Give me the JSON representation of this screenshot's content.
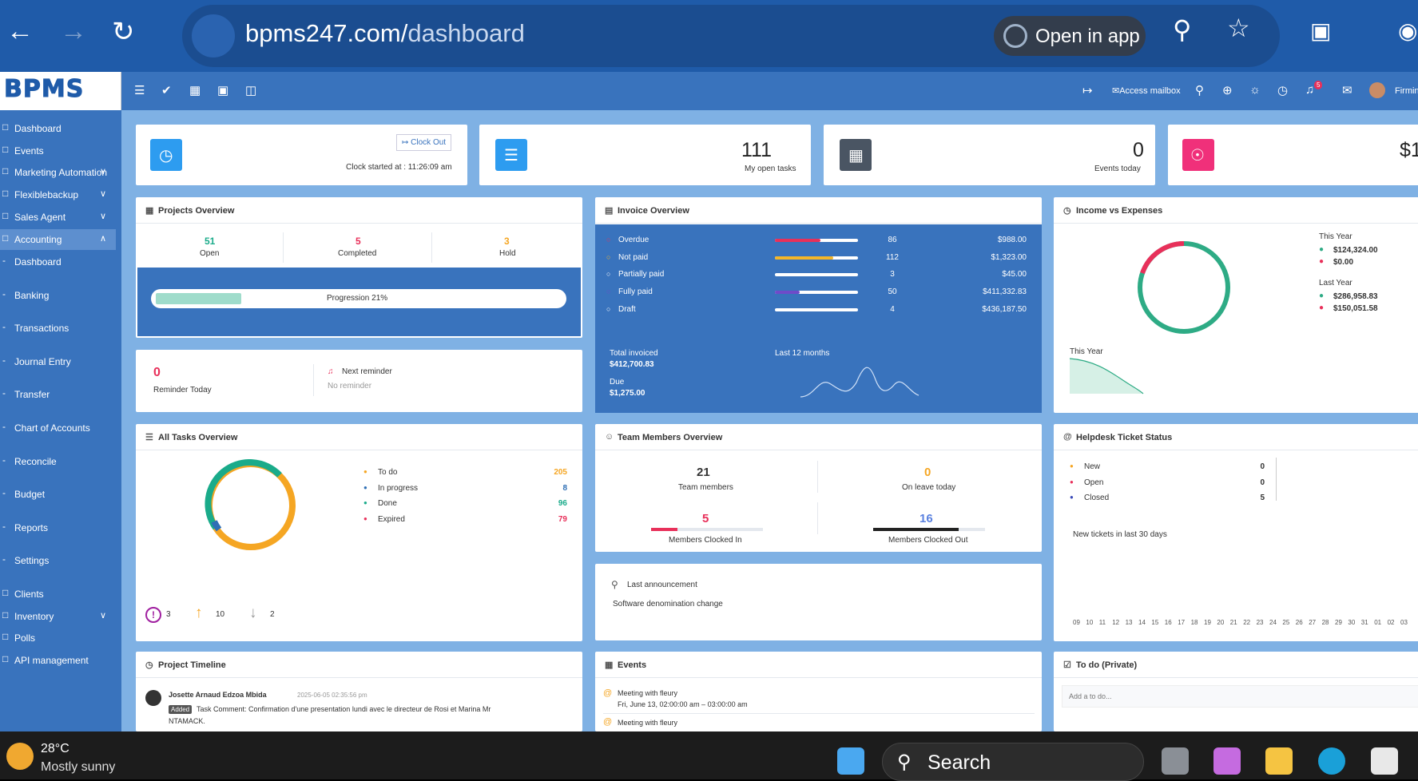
{
  "browser": {
    "url_host": "bpms247.com/",
    "url_path": "dashboard",
    "open_in_app": "Open in app"
  },
  "topbar": {
    "access_mailbox": "Access mailbox",
    "notif_count": "5",
    "user": "Firmin"
  },
  "logo": "BPMS",
  "sidebar": [
    {
      "label": "Dashboard"
    },
    {
      "label": "Events"
    },
    {
      "label": "Marketing Automation"
    },
    {
      "label": "Flexiblebackup"
    },
    {
      "label": "Sales Agent"
    },
    {
      "label": "Accounting"
    },
    {
      "label": "Dashboard"
    },
    {
      "label": "Banking"
    },
    {
      "label": "Transactions"
    },
    {
      "label": "Journal Entry"
    },
    {
      "label": "Transfer"
    },
    {
      "label": "Chart of Accounts"
    },
    {
      "label": "Reconcile"
    },
    {
      "label": "Budget"
    },
    {
      "label": "Reports"
    },
    {
      "label": "Settings"
    },
    {
      "label": "Clients"
    },
    {
      "label": "Inventory"
    },
    {
      "label": "Polls"
    },
    {
      "label": "API management"
    }
  ],
  "stats": {
    "clock_out": "Clock Out",
    "clock_started": "Clock started at : 11:26:09 am",
    "open_tasks": "111",
    "open_tasks_label": "My open tasks",
    "events_today": "0",
    "events_today_label": "Events today",
    "fourth_value": "$1"
  },
  "projects": {
    "title": "Projects Overview",
    "open": "51",
    "open_label": "Open",
    "completed": "5",
    "completed_label": "Completed",
    "hold": "3",
    "hold_label": "Hold",
    "progress_label": "Progression 21%",
    "progress": 0.21
  },
  "reminder": {
    "count": "0",
    "label": "Reminder Today",
    "next": "Next reminder",
    "none": "No reminder"
  },
  "invoice": {
    "title": "Invoice Overview",
    "rows": [
      {
        "name": "Overdue",
        "count": "86",
        "amount": "$988.00",
        "fill": 0.55,
        "color": "#e8305a"
      },
      {
        "name": "Not paid",
        "count": "112",
        "amount": "$1,323.00",
        "fill": 0.7,
        "color": "#f3b629"
      },
      {
        "name": "Partially paid",
        "count": "3",
        "amount": "$45.00",
        "fill": 0.0,
        "color": "#fff"
      },
      {
        "name": "Fully paid",
        "count": "50",
        "amount": "$411,332.83",
        "fill": 0.3,
        "color": "#6f4bc9"
      },
      {
        "name": "Draft",
        "count": "4",
        "amount": "$436,187.50",
        "fill": 0.0,
        "color": "#fff"
      }
    ],
    "total_label": "Total invoiced",
    "total": "$412,700.83",
    "due_label": "Due",
    "due": "$1,275.00",
    "last12": "Last 12 months"
  },
  "income": {
    "title": "Income vs Expenses",
    "this_year": "This Year",
    "ty_income": "$124,324.00",
    "ty_expense": "$0.00",
    "last_year": "Last Year",
    "ly_income": "$286,958.83",
    "ly_expense": "$150,051.58",
    "chart_label": "This Year"
  },
  "tasks": {
    "title": "All Tasks Overview",
    "items": [
      {
        "name": "To do",
        "value": "205",
        "color": "#f5a623"
      },
      {
        "name": "In progress",
        "value": "8",
        "color": "#2f6fb5"
      },
      {
        "name": "Done",
        "value": "96",
        "color": "#1aab8a"
      },
      {
        "name": "Expired",
        "value": "79",
        "color": "#e8305a"
      }
    ],
    "urgent": "3",
    "high": "10",
    "low": "2"
  },
  "team": {
    "title": "Team Members Overview",
    "members": "21",
    "members_label": "Team members",
    "leave": "0",
    "leave_label": "On leave today",
    "clocked_in": "5",
    "clocked_in_label": "Members Clocked In",
    "clocked_out": "16",
    "clocked_out_label": "Members Clocked Out"
  },
  "announcement": {
    "label": "Last announcement",
    "text": "Software denomination change"
  },
  "helpdesk": {
    "title": "Helpdesk Ticket Status",
    "rows": [
      {
        "name": "New",
        "value": "0",
        "color": "#f5a623"
      },
      {
        "name": "Open",
        "value": "0",
        "color": "#e8305a"
      },
      {
        "name": "Closed",
        "value": "5",
        "color": "#3b4bb8"
      }
    ],
    "chart_label": "New tickets in last 30 days",
    "days": [
      "09",
      "10",
      "11",
      "12",
      "13",
      "14",
      "15",
      "16",
      "17",
      "18",
      "19",
      "20",
      "21",
      "22",
      "23",
      "24",
      "25",
      "26",
      "27",
      "28",
      "29",
      "30",
      "31",
      "01",
      "02",
      "03"
    ]
  },
  "timeline": {
    "title": "Project Timeline",
    "author": "Josette Arnaud Edzoa Mbida",
    "date": "2025-06-05 02:35:56 pm",
    "badge": "Added",
    "text": "Task Comment: Confirmation d'une presentation lundi avec le directeur de Rosi et Marina Mr",
    "text2": "NTAMACK."
  },
  "events": {
    "title": "Events",
    "e1_title": "Meeting with fleury",
    "e1_time": "Fri, June 13, 02:00:00 am – 03:00:00 am",
    "e2_title": "Meeting with fleury"
  },
  "todo": {
    "title": "To do (Private)",
    "placeholder": "Add a to do..."
  },
  "taskbar": {
    "temp": "28°C",
    "weather": "Mostly sunny",
    "search": "Search"
  }
}
